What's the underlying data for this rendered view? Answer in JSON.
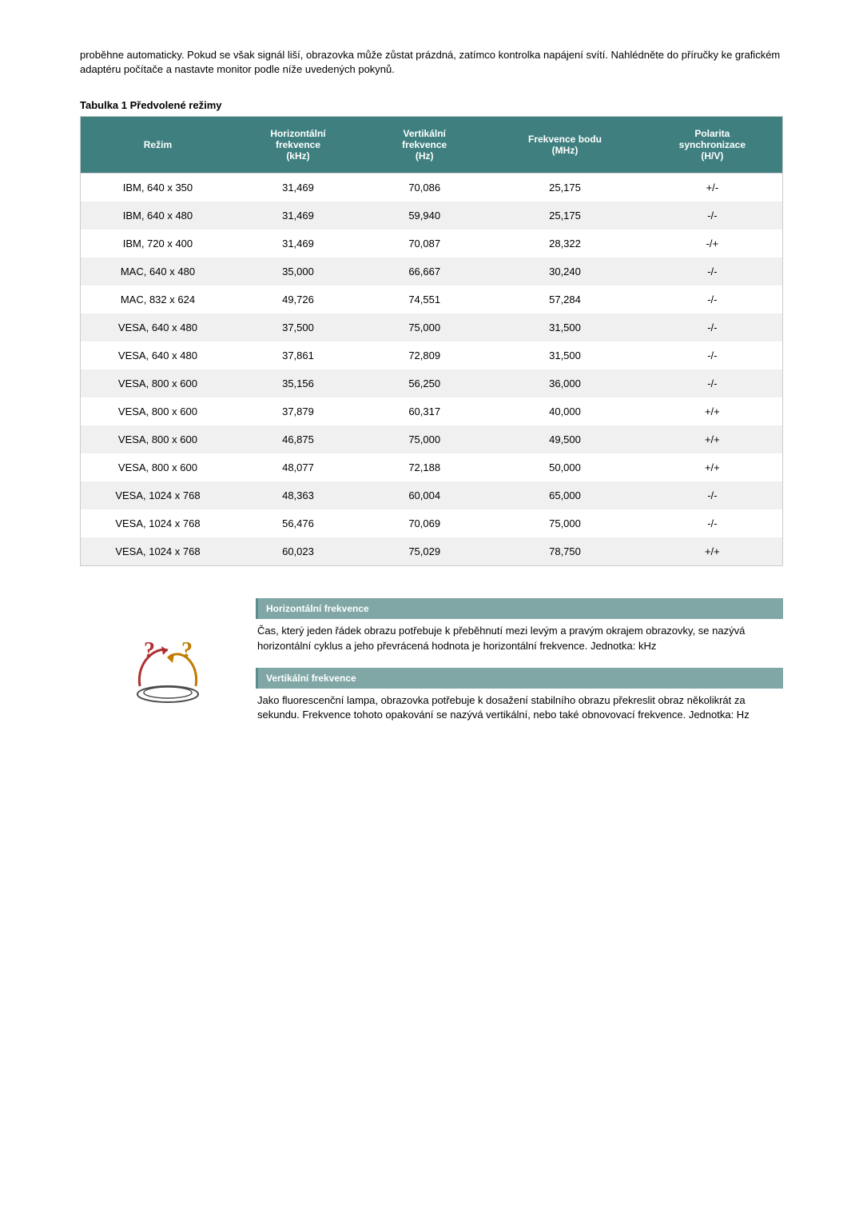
{
  "intro": "proběhne automaticky. Pokud se však signál liší, obrazovka může zůstat prázdná, zatímco kontrolka napájení svítí. Nahlédněte do příručky ke grafickém adaptéru počítače a nastavte monitor podle níže uvedených pokynů.",
  "table_title": "Tabulka 1 Předvolené režimy",
  "table": {
    "header_bg": "#3f7f7f",
    "header_fg": "#ffffff",
    "row_even_bg": "#f0f0f0",
    "row_odd_bg": "#ffffff",
    "border_color": "#cccccc",
    "columns": [
      "Režim",
      "Horizontální\nfrekvence\n(kHz)",
      "Vertikální\nfrekvence\n(Hz)",
      "Frekvence bodu\n(MHz)",
      "Polarita\nsynchronizace\n(H/V)"
    ],
    "rows": [
      [
        "IBM, 640 x 350",
        "31,469",
        "70,086",
        "25,175",
        "+/-"
      ],
      [
        "IBM, 640 x 480",
        "31,469",
        "59,940",
        "25,175",
        "-/-"
      ],
      [
        "IBM, 720 x 400",
        "31,469",
        "70,087",
        "28,322",
        "-/+"
      ],
      [
        "MAC, 640 x 480",
        "35,000",
        "66,667",
        "30,240",
        "-/-"
      ],
      [
        "MAC, 832 x 624",
        "49,726",
        "74,551",
        "57,284",
        "-/-"
      ],
      [
        "VESA, 640 x 480",
        "37,500",
        "75,000",
        "31,500",
        "-/-"
      ],
      [
        "VESA, 640 x 480",
        "37,861",
        "72,809",
        "31,500",
        "-/-"
      ],
      [
        "VESA, 800 x 600",
        "35,156",
        "56,250",
        "36,000",
        "-/-"
      ],
      [
        "VESA, 800 x 600",
        "37,879",
        "60,317",
        "40,000",
        "+/+"
      ],
      [
        "VESA, 800 x 600",
        "46,875",
        "75,000",
        "49,500",
        "+/+"
      ],
      [
        "VESA, 800 x 600",
        "48,077",
        "72,188",
        "50,000",
        "+/+"
      ],
      [
        "VESA, 1024 x 768",
        "48,363",
        "60,004",
        "65,000",
        "-/-"
      ],
      [
        "VESA, 1024 x 768",
        "56,476",
        "70,069",
        "75,000",
        "-/-"
      ],
      [
        "VESA, 1024 x 768",
        "60,023",
        "75,029",
        "78,750",
        "+/+"
      ]
    ]
  },
  "info_boxes": [
    {
      "title": "Horizontální frekvence",
      "body": "Čas, který jeden řádek obrazu potřebuje k přeběhnutí mezi levým a pravým okrajem obrazovky, se nazývá horizontální cyklus a jeho převrácená hodnota je horizontální frekvence. Jednotka: kHz"
    },
    {
      "title": "Vertikální frekvence",
      "body": "Jako fluorescenční lampa, obrazovka potřebuje k dosažení stabilního obrazu překreslit obraz několikrát za sekundu. Frekvence tohoto opakování se nazývá vertikální, nebo také obnovovací frekvence. Jednotka: Hz"
    }
  ],
  "info_header_bg": "#80a6a6",
  "info_header_border": "#5a8e8e"
}
